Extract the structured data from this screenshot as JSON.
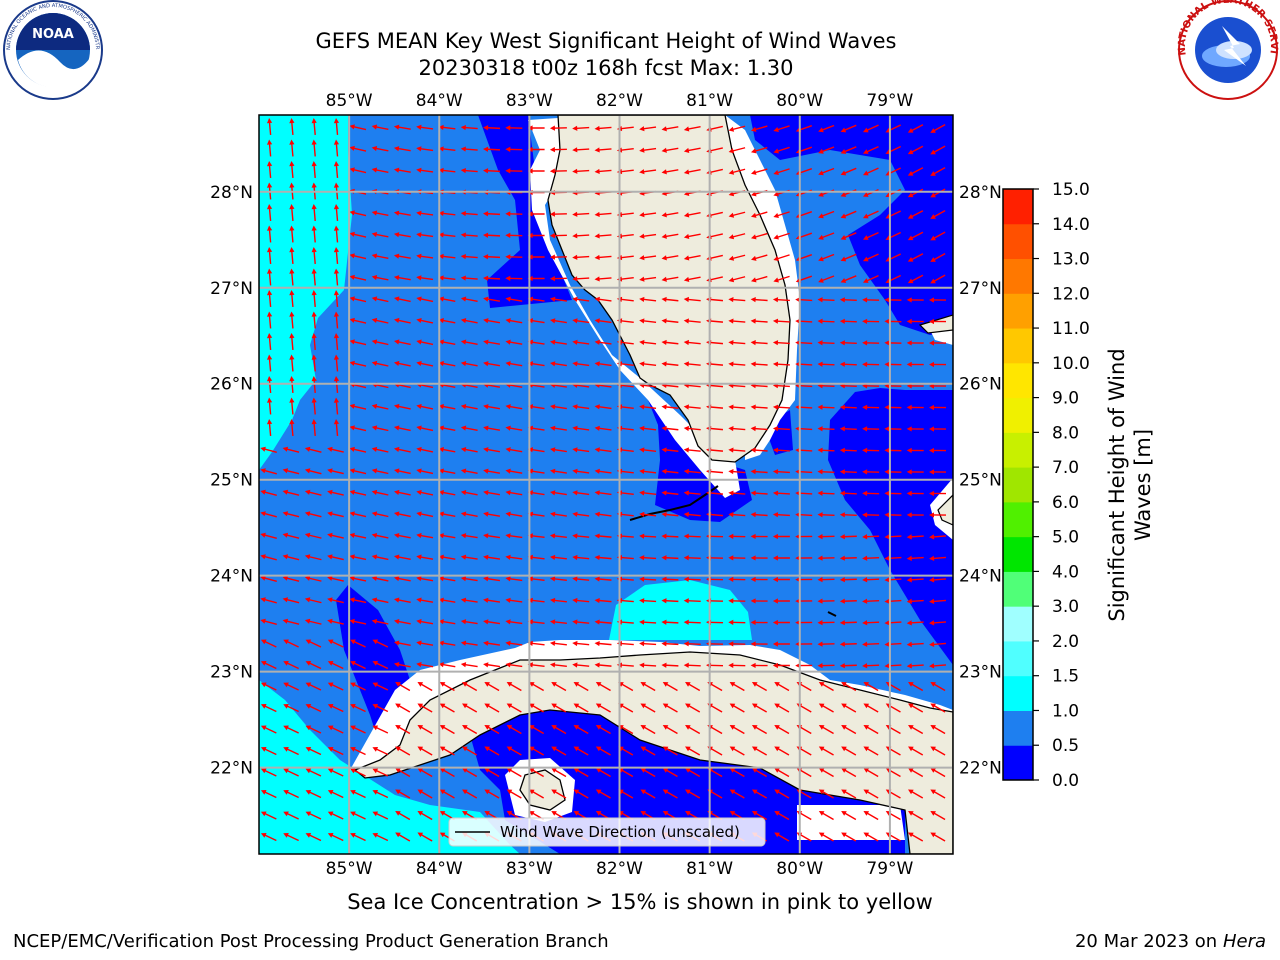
{
  "title": {
    "line1": "GEFS MEAN Key West Significant Height of Wind Waves",
    "line2": "20230318 t00z 168h fcst   Max: 1.30"
  },
  "logos": {
    "left": "NOAA",
    "left_ring_text": "NATIONAL OCEANIC AND ATMOSPHERIC ADMINISTRATION · U.S. DEPARTMENT OF COMMERCE",
    "right_ring_text": "NATIONAL WEATHER SERVICE"
  },
  "map": {
    "lon_labels": [
      "85°W",
      "84°W",
      "83°W",
      "82°W",
      "81°W",
      "80°W",
      "79°W"
    ],
    "lat_labels": [
      "28°N",
      "27°N",
      "26°N",
      "25°N",
      "24°N",
      "23°N",
      "22°N"
    ],
    "lon_range": [
      -86.0,
      -78.3
    ],
    "lat_range": [
      21.1,
      28.8
    ],
    "legend_label": "Wind Wave Direction (unscaled)",
    "arrow_color": "#ff0000",
    "land_color": "#eeecdd"
  },
  "colorbar": {
    "label": "Significant Height of Wind Waves [m]",
    "label_line1": "Significant Height of Wind",
    "label_line2": "Waves [m]",
    "ticks": [
      "0.0",
      "0.5",
      "1.0",
      "1.5",
      "2.0",
      "3.0",
      "4.0",
      "5.0",
      "6.0",
      "7.0",
      "8.0",
      "9.0",
      "10.0",
      "11.0",
      "12.0",
      "13.0",
      "14.0",
      "15.0"
    ],
    "colors": [
      "#0000ff",
      "#1e7ff0",
      "#00ffff",
      "#50ffff",
      "#a0ffff",
      "#50ff78",
      "#00e600",
      "#50f000",
      "#a0e600",
      "#c8f000",
      "#f0f000",
      "#ffe600",
      "#ffc800",
      "#ffa000",
      "#ff7800",
      "#ff5000",
      "#ff2000"
    ]
  },
  "captions": {
    "sea_ice": "Sea Ice Concentration > 15% is shown in pink to yellow",
    "footer_left": "NCEP/EMC/Verification Post Processing Product Generation Branch",
    "footer_date": "20 Mar 2023 on",
    "footer_host": "Hera"
  }
}
